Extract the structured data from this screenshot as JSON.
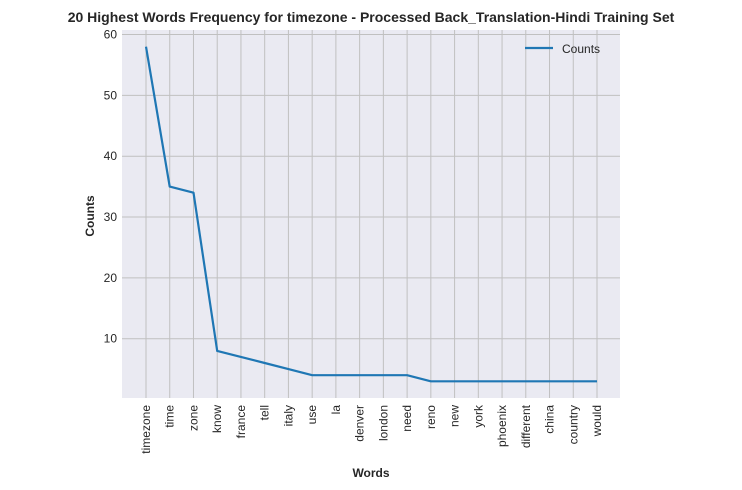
{
  "chart_data": {
    "type": "line",
    "title": "20 Highest Words Frequency for timezone - Processed Back_Translation-Hindi Training Set",
    "xlabel": "Words",
    "ylabel": "Counts",
    "categories": [
      "timezone",
      "time",
      "zone",
      "know",
      "france",
      "tell",
      "italy",
      "use",
      "la",
      "denver",
      "london",
      "need",
      "reno",
      "new",
      "york",
      "phoenix",
      "different",
      "china",
      "country",
      "would"
    ],
    "series": [
      {
        "name": "Counts",
        "values": [
          58,
          35,
          34,
          8,
          7,
          6,
          5,
          4,
          4,
          4,
          4,
          4,
          3,
          3,
          3,
          3,
          3,
          3,
          3,
          3
        ]
      }
    ],
    "ylim": [
      0.25,
      60.75
    ],
    "yticks": [
      10,
      20,
      30,
      40,
      50,
      60
    ],
    "grid": true,
    "legend": "upper right",
    "colors": {
      "line": "#1f77b4",
      "background": "#eaeaf2",
      "grid": "#c0c0c0"
    }
  }
}
